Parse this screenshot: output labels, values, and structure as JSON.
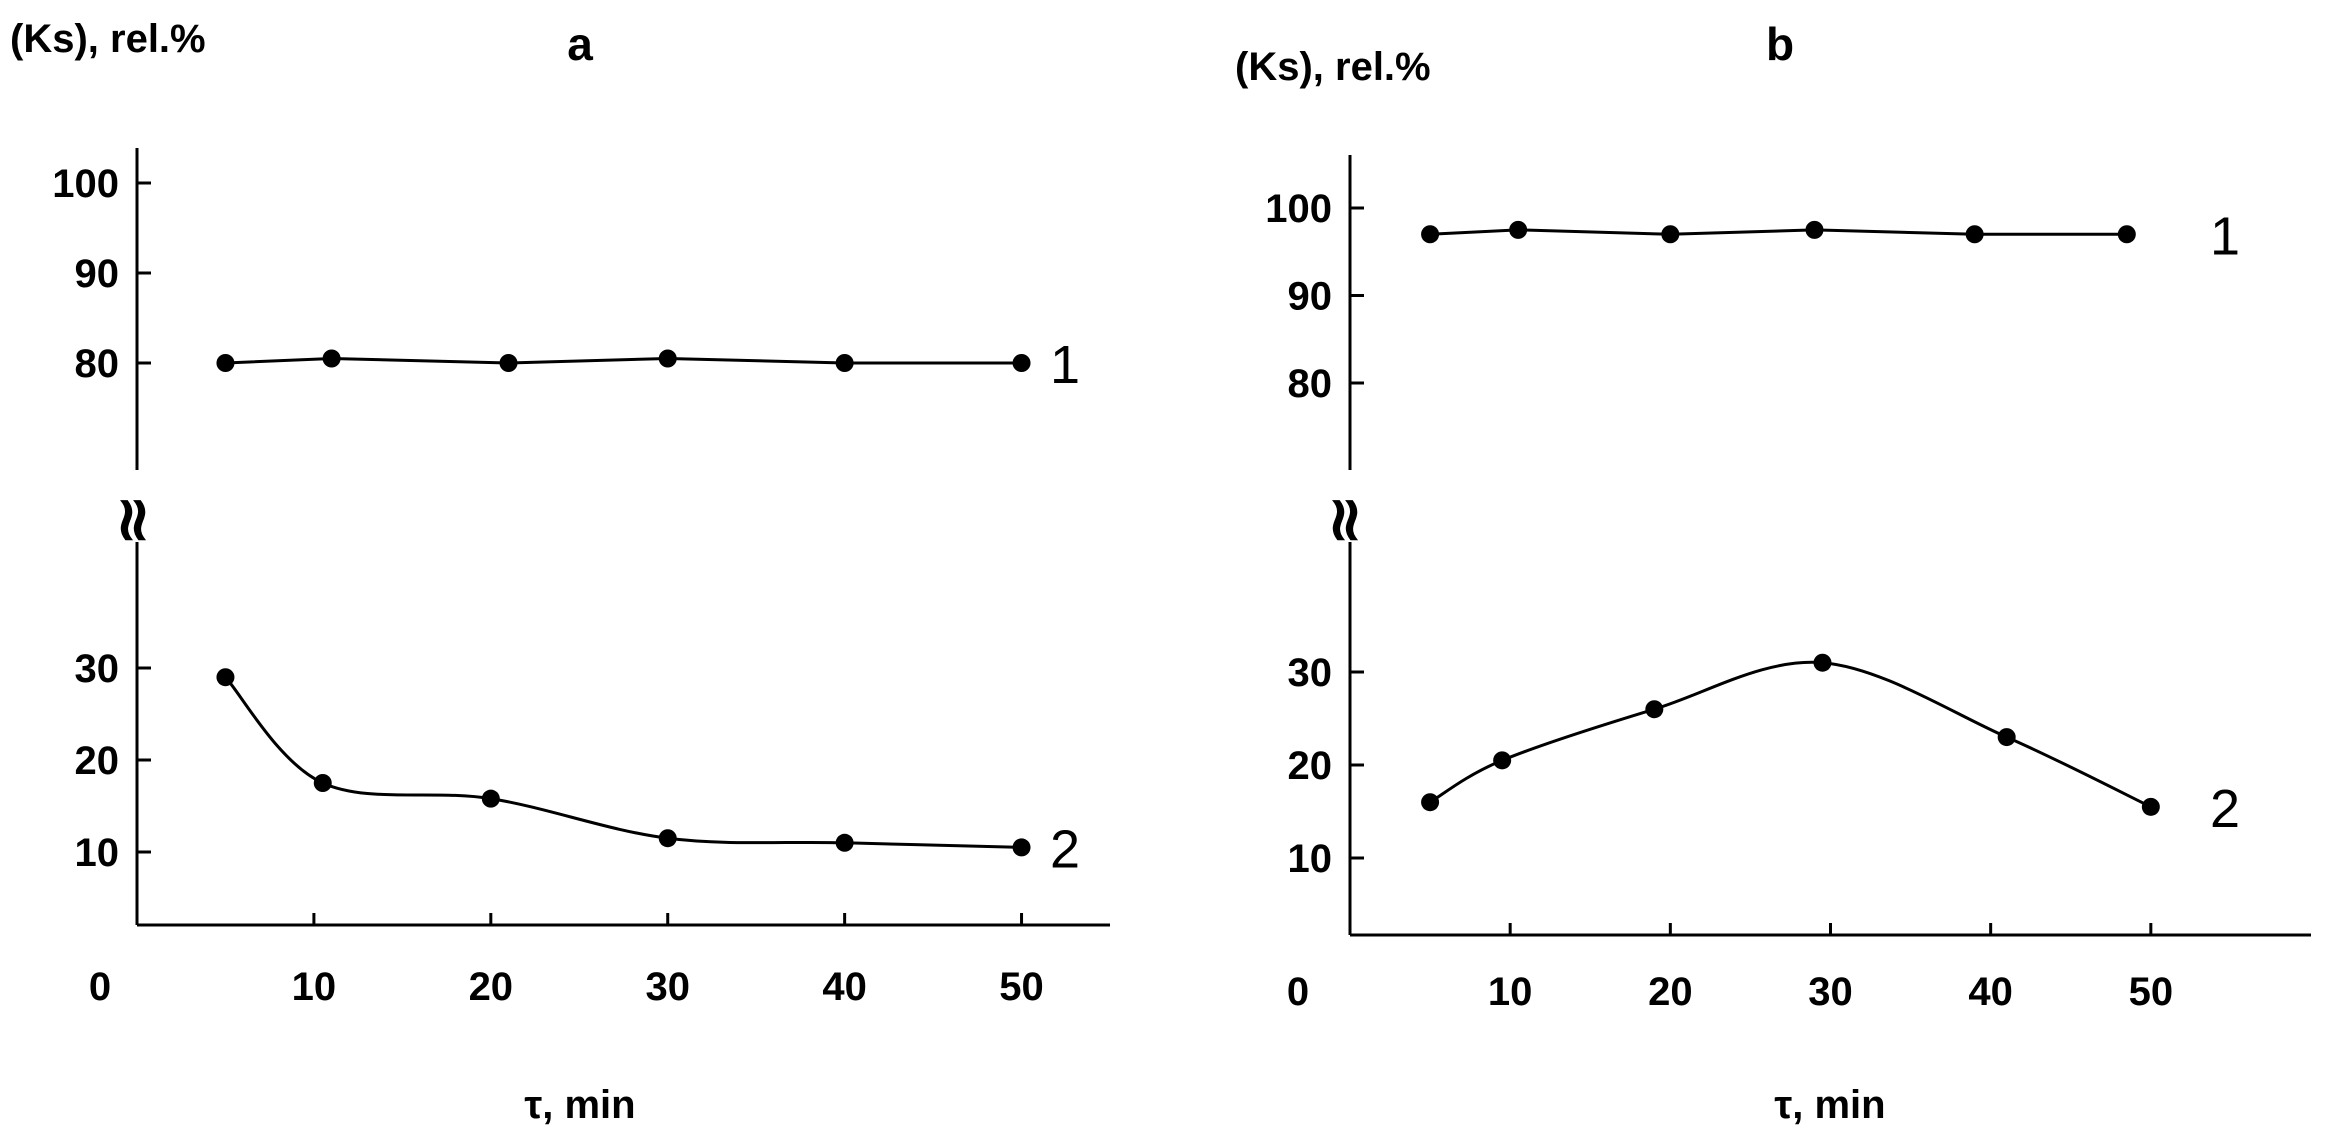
{
  "chart_data": [
    {
      "type": "line",
      "panel": "a",
      "title": "a",
      "ylabel": "(Ks), rel.%",
      "xlabel": "τ,  min",
      "origin_label": "0",
      "break_mark": "≈",
      "x_ticks": [
        10,
        20,
        30,
        40,
        50
      ],
      "y_ticks_upper": [
        80,
        90,
        100
      ],
      "y_ticks_lower": [
        10,
        20,
        30
      ],
      "xlim": [
        0,
        55
      ],
      "series": [
        {
          "name": "1",
          "x": [
            5,
            11,
            21,
            30,
            40,
            50
          ],
          "y": [
            80,
            80.5,
            80,
            80.5,
            80,
            80
          ]
        },
        {
          "name": "2",
          "x": [
            5,
            10.5,
            20,
            30,
            40,
            50
          ],
          "y": [
            29,
            17.5,
            15.8,
            11.5,
            11,
            10.5
          ]
        }
      ]
    },
    {
      "type": "line",
      "panel": "b",
      "title": "b",
      "ylabel": "(Ks), rel.%",
      "xlabel": "τ,  min",
      "origin_label": "0",
      "break_mark": "≈",
      "x_ticks": [
        10,
        20,
        30,
        40,
        50
      ],
      "y_ticks_upper": [
        80,
        90,
        100
      ],
      "y_ticks_lower": [
        10,
        20,
        30
      ],
      "xlim": [
        0,
        60
      ],
      "series": [
        {
          "name": "1",
          "x": [
            5,
            10.5,
            20,
            29,
            39,
            48.5
          ],
          "y": [
            97,
            97.5,
            97,
            97.5,
            97,
            97
          ]
        },
        {
          "name": "2",
          "x": [
            5,
            9.5,
            19,
            29.5,
            41,
            50
          ],
          "y": [
            16,
            20.5,
            26,
            31,
            23,
            15.5
          ]
        }
      ]
    }
  ]
}
